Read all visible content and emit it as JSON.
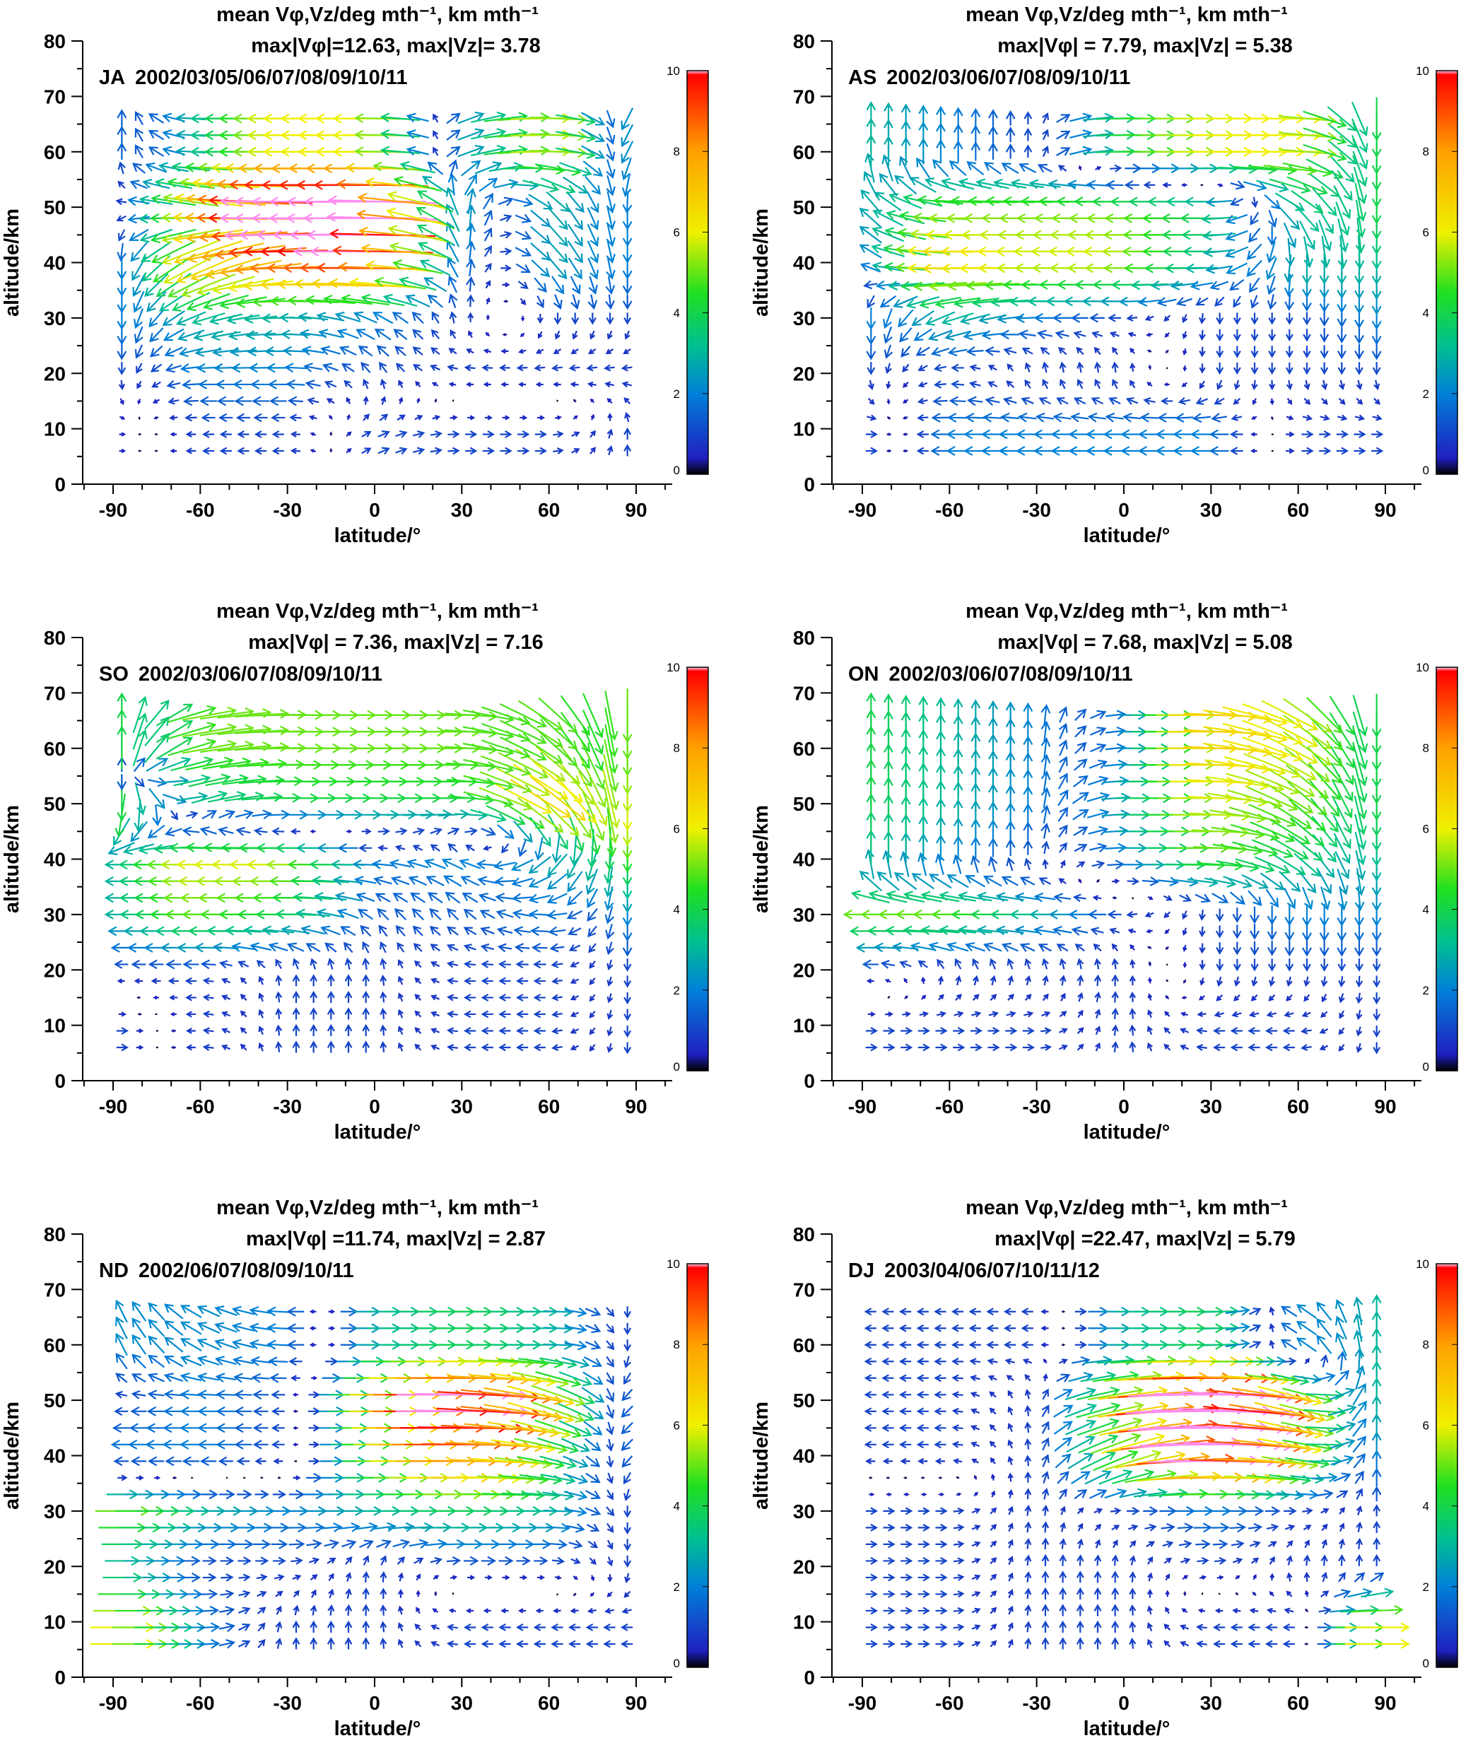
{
  "chart_data": {
    "type": "quiver",
    "shared": {
      "title": "mean Vφ,Vz/deg mth⁻¹, km mth⁻¹",
      "xlabel": "latitude/°",
      "ylabel": "altitude/km",
      "xlim": [
        -105,
        105
      ],
      "ylim": [
        0,
        80
      ],
      "xticks": [
        -90,
        -60,
        -30,
        0,
        30,
        60,
        90
      ],
      "yticks": [
        0,
        10,
        20,
        30,
        40,
        50,
        60,
        70,
        80
      ],
      "colorbar": {
        "range": [
          0,
          10
        ],
        "ticks": [
          0,
          2,
          4,
          6,
          8,
          10
        ],
        "colormap": "rainbow",
        "over_color": "#ff8cf0"
      },
      "grid_lat": [
        -87,
        -60,
        -30,
        0,
        30,
        60,
        87
      ],
      "grid_alt": [
        10,
        20,
        30,
        40,
        50,
        60
      ]
    },
    "panels": [
      {
        "label": "JA",
        "years": "2002/03/05/06/07/08/09/10/11",
        "subtitle": "max|Vφ|=12.63, max|Vz|= 3.78",
        "vectors": [
          [
            [
              0.5,
              0
            ],
            [
              -1,
              0
            ],
            [
              -1,
              0
            ],
            [
              1,
              0.5
            ],
            [
              1,
              0
            ],
            [
              1,
              0
            ],
            [
              0,
              1
            ]
          ],
          [
            [
              0,
              -1
            ],
            [
              -2,
              0
            ],
            [
              -2,
              0
            ],
            [
              -0.5,
              1
            ],
            [
              -1,
              0
            ],
            [
              -1,
              0
            ],
            [
              -1,
              0
            ]
          ],
          [
            [
              0,
              -2
            ],
            [
              -3,
              -1
            ],
            [
              -3,
              0
            ],
            [
              -2,
              1
            ],
            [
              0,
              1
            ],
            [
              0,
              -1
            ],
            [
              0,
              -1
            ]
          ],
          [
            [
              0,
              -2
            ],
            [
              -6,
              -3
            ],
            [
              -9,
              0
            ],
            [
              -10,
              0
            ],
            [
              0,
              2
            ],
            [
              2,
              -2
            ],
            [
              0,
              -2
            ]
          ],
          [
            [
              -1,
              0
            ],
            [
              -6,
              1
            ],
            [
              -12,
              0
            ],
            [
              -12,
              0
            ],
            [
              0,
              3
            ],
            [
              2,
              -2
            ],
            [
              0,
              -2
            ]
          ],
          [
            [
              0,
              1.5
            ],
            [
              -3,
              0
            ],
            [
              -6,
              0
            ],
            [
              -6,
              0
            ],
            [
              2,
              1
            ],
            [
              6,
              0
            ],
            [
              -1,
              -2
            ]
          ]
        ]
      },
      {
        "label": "AS",
        "years": "2002/03/06/07/08/09/10/11",
        "subtitle": "max|Vφ| = 7.79, max|Vz| = 5.38",
        "vectors": [
          [
            [
              1,
              0
            ],
            [
              -2,
              0
            ],
            [
              -2,
              0
            ],
            [
              -2,
              0
            ],
            [
              -2,
              0
            ],
            [
              1,
              0
            ],
            [
              1,
              0
            ]
          ],
          [
            [
              0,
              -1
            ],
            [
              -1,
              0
            ],
            [
              0,
              1
            ],
            [
              0,
              1
            ],
            [
              0,
              -1
            ],
            [
              0,
              -1
            ],
            [
              0,
              -1
            ]
          ],
          [
            [
              0,
              -2
            ],
            [
              -3,
              -1
            ],
            [
              -2,
              0
            ],
            [
              -1,
              0
            ],
            [
              0,
              -1
            ],
            [
              0,
              -1
            ],
            [
              0,
              -2
            ]
          ],
          [
            [
              -2,
              1
            ],
            [
              -7,
              0
            ],
            [
              -6,
              0
            ],
            [
              -6,
              0
            ],
            [
              -3,
              0
            ],
            [
              0,
              -3
            ],
            [
              0,
              -3
            ]
          ],
          [
            [
              -2,
              2
            ],
            [
              -5,
              0
            ],
            [
              -5,
              0
            ],
            [
              -5,
              0
            ],
            [
              -4,
              0
            ],
            [
              3,
              -2
            ],
            [
              0,
              -4
            ]
          ],
          [
            [
              0,
              3
            ],
            [
              0,
              2
            ],
            [
              0,
              1
            ],
            [
              4,
              0
            ],
            [
              6,
              0
            ],
            [
              6,
              0
            ],
            [
              0,
              -4
            ]
          ]
        ]
      },
      {
        "label": "SO",
        "years": "2002/03/06/07/08/09/10/11",
        "subtitle": "max|Vφ| = 7.36, max|Vz| = 7.16",
        "vectors": [
          [
            [
              1,
              0
            ],
            [
              -1,
              0
            ],
            [
              0,
              1
            ],
            [
              0,
              1
            ],
            [
              -1,
              0
            ],
            [
              -1,
              0
            ],
            [
              0,
              -1
            ]
          ],
          [
            [
              -1,
              0
            ],
            [
              -1,
              0
            ],
            [
              0,
              1
            ],
            [
              0,
              1
            ],
            [
              -1,
              0
            ],
            [
              -1,
              0
            ],
            [
              0,
              -1
            ]
          ],
          [
            [
              -3,
              0
            ],
            [
              -5,
              0
            ],
            [
              -4,
              0
            ],
            [
              -1,
              1
            ],
            [
              -1,
              1
            ],
            [
              -2,
              0
            ],
            [
              0,
              -2
            ]
          ],
          [
            [
              -3,
              0
            ],
            [
              -6,
              0
            ],
            [
              -6,
              0
            ],
            [
              -2,
              0
            ],
            [
              -2,
              1
            ],
            [
              -2,
              -2
            ],
            [
              0,
              -4
            ]
          ],
          [
            [
              0,
              -5
            ],
            [
              3,
              1
            ],
            [
              4,
              0
            ],
            [
              4,
              0
            ],
            [
              4,
              0
            ],
            [
              6,
              -4
            ],
            [
              0,
              -6
            ]
          ],
          [
            [
              0,
              4
            ],
            [
              5,
              1
            ],
            [
              5,
              0
            ],
            [
              5,
              0
            ],
            [
              5,
              0
            ],
            [
              4,
              -3
            ],
            [
              0,
              -5
            ]
          ]
        ]
      },
      {
        "label": "ON",
        "years": "2002/03/06/07/08/09/10/11",
        "subtitle": "max|Vφ| = 7.68, max|Vz| = 5.08",
        "vectors": [
          [
            [
              1,
              0
            ],
            [
              1,
              0
            ],
            [
              1,
              0
            ],
            [
              0,
              1
            ],
            [
              -1,
              0
            ],
            [
              -1,
              0
            ],
            [
              0,
              -1
            ]
          ],
          [
            [
              -1,
              0
            ],
            [
              0,
              1
            ],
            [
              0,
              1
            ],
            [
              0,
              1
            ],
            [
              0,
              -1
            ],
            [
              0,
              -1
            ],
            [
              0,
              -1
            ]
          ],
          [
            [
              -5,
              0
            ],
            [
              -5,
              0
            ],
            [
              -3,
              0
            ],
            [
              -1,
              0
            ],
            [
              0,
              -1
            ],
            [
              0,
              -2
            ],
            [
              0,
              -2
            ]
          ],
          [
            [
              0,
              3
            ],
            [
              0,
              2
            ],
            [
              0,
              1
            ],
            [
              2,
              0
            ],
            [
              5,
              0
            ],
            [
              3,
              -2
            ],
            [
              0,
              -3
            ]
          ],
          [
            [
              0,
              4
            ],
            [
              0,
              3
            ],
            [
              0,
              2
            ],
            [
              3,
              0
            ],
            [
              6,
              0
            ],
            [
              4,
              -3
            ],
            [
              0,
              -4
            ]
          ],
          [
            [
              0,
              4
            ],
            [
              0,
              3
            ],
            [
              0,
              2
            ],
            [
              2,
              0
            ],
            [
              7,
              0
            ],
            [
              5,
              -3
            ],
            [
              0,
              -4
            ]
          ]
        ]
      },
      {
        "label": "ND",
        "years": "2002/06/07/08/09/10/11",
        "subtitle": "max|Vφ| =11.74, max|Vz| = 2.87",
        "vectors": [
          [
            [
              6,
              0
            ],
            [
              2,
              0
            ],
            [
              0,
              1
            ],
            [
              0,
              1
            ],
            [
              -1,
              0
            ],
            [
              -1,
              0
            ],
            [
              -1,
              0
            ]
          ],
          [
            [
              3,
              0
            ],
            [
              1,
              0
            ],
            [
              1,
              0
            ],
            [
              0,
              1
            ],
            [
              1,
              0
            ],
            [
              1,
              0
            ],
            [
              0,
              -1
            ]
          ],
          [
            [
              5,
              0
            ],
            [
              3,
              0
            ],
            [
              2,
              0
            ],
            [
              3,
              0
            ],
            [
              4,
              0
            ],
            [
              3,
              0
            ],
            [
              0,
              -1
            ]
          ],
          [
            [
              -2,
              0
            ],
            [
              -2,
              0
            ],
            [
              -1,
              0
            ],
            [
              5,
              0
            ],
            [
              9,
              0
            ],
            [
              4,
              -1
            ],
            [
              -1,
              -1
            ]
          ],
          [
            [
              -1,
              0
            ],
            [
              -2,
              0
            ],
            [
              -1,
              0
            ],
            [
              6,
              0
            ],
            [
              12,
              0
            ],
            [
              6,
              -2
            ],
            [
              -1,
              -1
            ]
          ],
          [
            [
              -1,
              2
            ],
            [
              -2,
              1
            ],
            [
              -2,
              0
            ],
            [
              3,
              0
            ],
            [
              4,
              0
            ],
            [
              3,
              0
            ],
            [
              0,
              -1
            ]
          ]
        ]
      },
      {
        "label": "DJ",
        "years": "2003/04/06/07/10/11/12",
        "subtitle": "max|Vφ| =22.47, max|Vz| = 5.79",
        "vectors": [
          [
            [
              1,
              0
            ],
            [
              1,
              0
            ],
            [
              0,
              1
            ],
            [
              0,
              1
            ],
            [
              -1,
              0
            ],
            [
              -1,
              0
            ],
            [
              6,
              0
            ]
          ],
          [
            [
              1,
              0
            ],
            [
              1,
              0
            ],
            [
              0,
              1
            ],
            [
              0,
              1
            ],
            [
              1,
              0
            ],
            [
              0,
              1
            ],
            [
              0,
              1
            ]
          ],
          [
            [
              1,
              0
            ],
            [
              1,
              0
            ],
            [
              0,
              1
            ],
            [
              1,
              0
            ],
            [
              2,
              0
            ],
            [
              1,
              0
            ],
            [
              0,
              1
            ]
          ],
          [
            [
              -1,
              0
            ],
            [
              -1,
              0
            ],
            [
              0,
              1
            ],
            [
              5,
              2
            ],
            [
              12,
              0
            ],
            [
              5,
              -1
            ],
            [
              0,
              2
            ]
          ],
          [
            [
              -1,
              0
            ],
            [
              -1,
              0
            ],
            [
              0,
              1
            ],
            [
              6,
              1
            ],
            [
              14,
              0
            ],
            [
              6,
              -2
            ],
            [
              0,
              3
            ]
          ],
          [
            [
              -1,
              0
            ],
            [
              -1,
              0
            ],
            [
              -1,
              0
            ],
            [
              3,
              0
            ],
            [
              4,
              0
            ],
            [
              -2,
              1
            ],
            [
              0,
              3
            ]
          ]
        ]
      }
    ]
  }
}
